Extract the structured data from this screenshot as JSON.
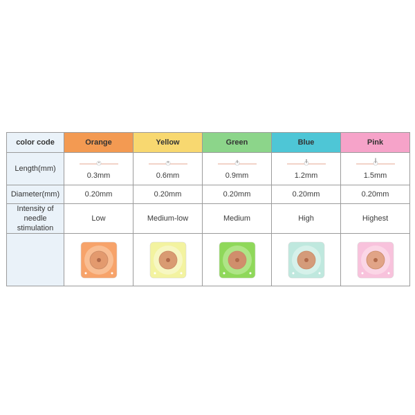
{
  "header": {
    "label": "color code",
    "colors": [
      {
        "name": "Orange",
        "bg": "#f39a52"
      },
      {
        "name": "Yellow",
        "bg": "#f8d870"
      },
      {
        "name": "Green",
        "bg": "#8cd58a"
      },
      {
        "name": "Blue",
        "bg": "#4ec6d6"
      },
      {
        "name": "Pink",
        "bg": "#f6a3c9"
      }
    ]
  },
  "rows": {
    "length": {
      "label": "Length(mm)",
      "values": [
        "0.3mm",
        "0.6mm",
        "0.9mm",
        "1.2mm",
        "1.5mm"
      ],
      "needle_mm": [
        0.3,
        0.6,
        0.9,
        1.2,
        1.5
      ]
    },
    "diameter": {
      "label": "Diameter(mm)",
      "values": [
        "0.20mm",
        "0.20mm",
        "0.20mm",
        "0.20mm",
        "0.20mm"
      ]
    },
    "intensity": {
      "label": "Intensity of needle stimulation",
      "values": [
        "Low",
        "Medium-low",
        "Medium",
        "High",
        "Highest"
      ]
    }
  },
  "patches": [
    {
      "color": "orange",
      "fill": "#f7a36a",
      "ring": "#f9c39a",
      "center": "#e39a6e"
    },
    {
      "color": "yellow",
      "fill": "#f3f3a0",
      "ring": "#f7f7c8",
      "center": "#d99b72"
    },
    {
      "color": "green",
      "fill": "#8fd85a",
      "ring": "#b5e88f",
      "center": "#d08e6c"
    },
    {
      "color": "blue",
      "fill": "#bfe8de",
      "ring": "#d9f2ec",
      "center": "#d49b7a"
    },
    {
      "color": "pink",
      "fill": "#f8c2dc",
      "ring": "#fbd9e8",
      "center": "#e1a487"
    }
  ]
}
